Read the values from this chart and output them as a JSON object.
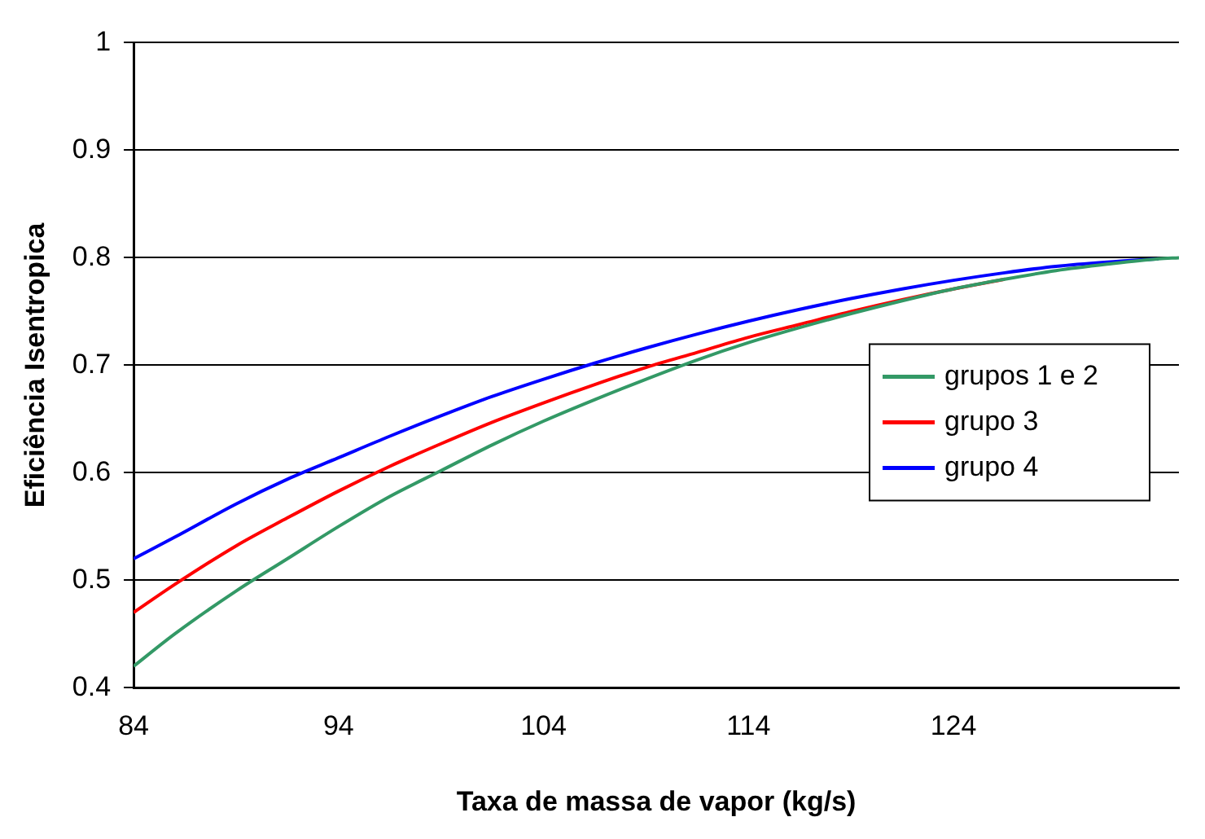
{
  "chart_data": {
    "type": "line",
    "xlabel": "Taxa de massa de vapor (kg/s)",
    "ylabel": "Eficiência Isentropica",
    "x": [
      84,
      86,
      89,
      91.5,
      94,
      96.5,
      99,
      101.5,
      104,
      106.5,
      109,
      111.5,
      114,
      116.5,
      119,
      121.5,
      124,
      126.5,
      129,
      131.5,
      134,
      135
    ],
    "series": [
      {
        "name": "grupos 1 e 2",
        "color": "#339966",
        "values": [
          0.42,
          0.45,
          0.49,
          0.52,
          0.55,
          0.578,
          0.602,
          0.626,
          0.648,
          0.668,
          0.687,
          0.705,
          0.721,
          0.735,
          0.748,
          0.76,
          0.771,
          0.78,
          0.788,
          0.794,
          0.799,
          0.8
        ]
      },
      {
        "name": "grupo 3",
        "color": "#ff0000",
        "values": [
          0.47,
          0.496,
          0.532,
          0.558,
          0.583,
          0.606,
          0.627,
          0.647,
          0.665,
          0.682,
          0.698,
          0.712,
          0.726,
          0.738,
          0.75,
          0.761,
          0.771,
          0.78,
          null,
          null,
          null,
          null
        ]
      },
      {
        "name": "grupo 4",
        "color": "#0000ff",
        "values": [
          0.52,
          0.54,
          0.571,
          0.594,
          0.614,
          0.634,
          0.653,
          0.671,
          0.687,
          0.702,
          0.716,
          0.729,
          0.741,
          0.752,
          0.762,
          0.771,
          0.779,
          0.786,
          0.792,
          0.796,
          0.799,
          null
        ]
      }
    ],
    "xlim": [
      84,
      135
    ],
    "xticks": [
      84,
      94,
      104,
      114,
      124
    ],
    "ylim": [
      0.4,
      1
    ],
    "yticks": [
      0.4,
      0.5,
      0.6,
      0.7,
      0.8,
      0.9,
      1
    ],
    "grid": "y",
    "legend": "right",
    "marker": "none",
    "line_style": "solid"
  }
}
